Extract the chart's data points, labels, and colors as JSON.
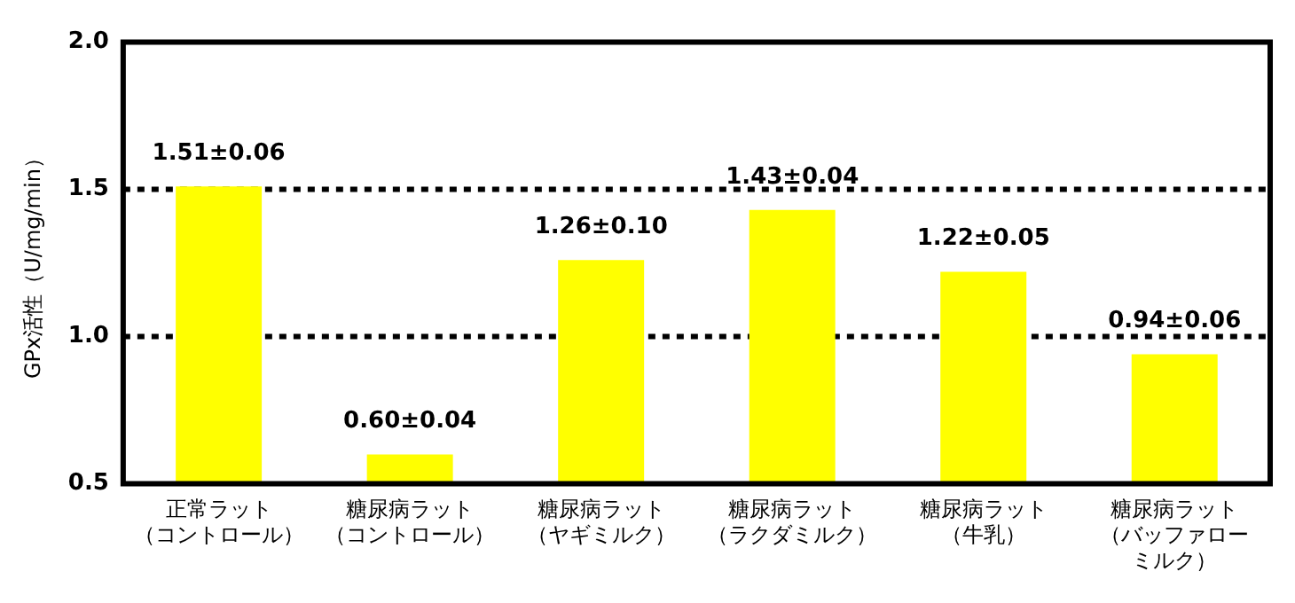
{
  "chart_data": {
    "type": "bar",
    "ylabel": "GPx活性（U/mg/min）",
    "categories": [
      "正常ラット（コントロール）",
      "糖尿病ラット（コントロール）",
      "糖尿病ラット（ヤギミルク）",
      "糖尿病ラット（ラクダミルク）",
      "糖尿病ラット（牛乳）",
      "糖尿病ラット（バッファローミルク）"
    ],
    "values": [
      1.51,
      0.6,
      1.26,
      1.43,
      1.22,
      0.94
    ],
    "value_labels": [
      "1.51±0.06",
      "0.60±0.04",
      "1.26±0.10",
      "1.43±0.04",
      "1.22±0.05",
      "0.94±0.06"
    ],
    "color": "#ffff00",
    "ylim": [
      0.5,
      2.0
    ],
    "yticks": [
      {
        "value": 0.5,
        "label": "0.5"
      },
      {
        "value": 1,
        "label": "1.0"
      },
      {
        "value": 1.5,
        "label": "1.5"
      },
      {
        "value": 2,
        "label": "2.0"
      }
    ],
    "ref_lines": [
      {
        "axis": "y",
        "value": 1,
        "color": "#000000",
        "line_style": "dotted"
      },
      {
        "axis": "y",
        "value": 1.5,
        "color": "#000000",
        "line_style": "dotted"
      }
    ],
    "grid": false,
    "legend": false
  }
}
